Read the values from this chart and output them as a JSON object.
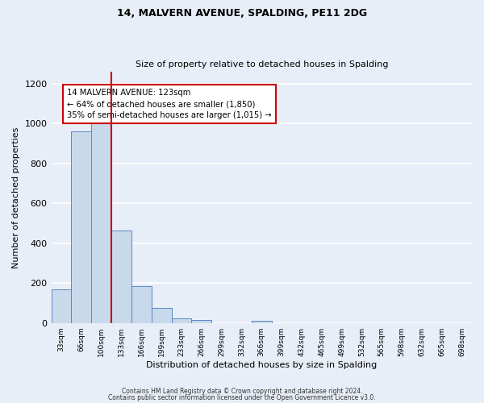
{
  "title1": "14, MALVERN AVENUE, SPALDING, PE11 2DG",
  "title2": "Size of property relative to detached houses in Spalding",
  "xlabel": "Distribution of detached houses by size in Spalding",
  "ylabel": "Number of detached properties",
  "bin_labels": [
    "33sqm",
    "66sqm",
    "100sqm",
    "133sqm",
    "166sqm",
    "199sqm",
    "233sqm",
    "266sqm",
    "299sqm",
    "332sqm",
    "366sqm",
    "399sqm",
    "432sqm",
    "465sqm",
    "499sqm",
    "532sqm",
    "565sqm",
    "598sqm",
    "632sqm",
    "665sqm",
    "698sqm"
  ],
  "bar_values": [
    170,
    960,
    1000,
    465,
    185,
    75,
    25,
    15,
    0,
    0,
    10,
    0,
    0,
    0,
    0,
    0,
    0,
    0,
    0,
    0,
    0
  ],
  "bar_color": "#c8d9ec",
  "bar_edge_color": "#5b87c5",
  "ylim": [
    0,
    1260
  ],
  "yticks": [
    0,
    200,
    400,
    600,
    800,
    1000,
    1200
  ],
  "annotation_box_text": "14 MALVERN AVENUE: 123sqm\n← 64% of detached houses are smaller (1,850)\n35% of semi-detached houses are larger (1,015) →",
  "annotation_box_color": "#ffffff",
  "annotation_box_edge_color": "#cc0000",
  "vline_color": "#cc0000",
  "footer1": "Contains HM Land Registry data © Crown copyright and database right 2024.",
  "footer2": "Contains public sector information licensed under the Open Government Licence v3.0.",
  "background_color": "#e8eef7",
  "plot_bg_color": "#e8eef7",
  "grid_color": "#ffffff"
}
